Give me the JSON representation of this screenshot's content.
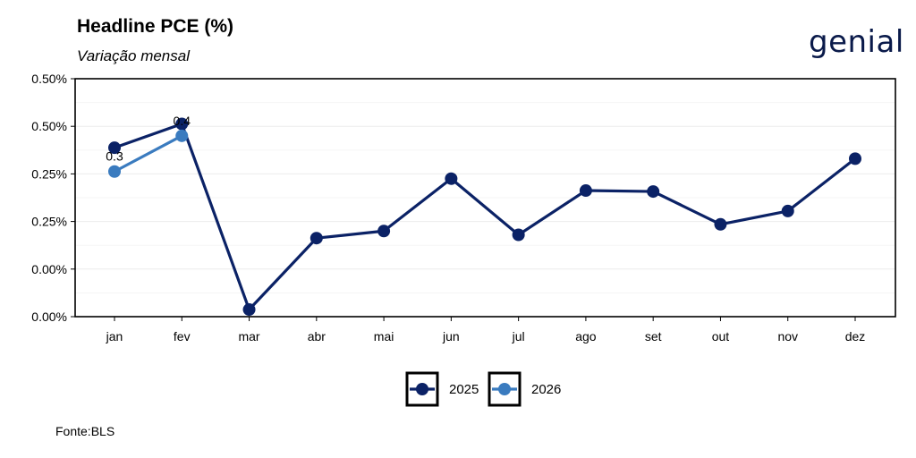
{
  "header": {
    "title": "Headline PCE (%)",
    "subtitle": "Variação mensal"
  },
  "logo": {
    "text": "genial"
  },
  "footer": {
    "source": "Fonte:BLS"
  },
  "chart_data": {
    "type": "line",
    "categories": [
      "jan",
      "fev",
      "mar",
      "abr",
      "mai",
      "jun",
      "jul",
      "ago",
      "set",
      "out",
      "nov",
      "dez"
    ],
    "y_tick_labels": [
      "0.00%",
      "0.00%",
      "0.25%",
      "0.25%",
      "0.50%",
      "0.50%"
    ],
    "ylim": [
      0.0,
      0.5
    ],
    "grid": true,
    "legend_position": "bottom",
    "series": [
      {
        "name": "2025",
        "color": "#0b2266",
        "values": [
          0.355,
          0.405,
          0.015,
          0.165,
          0.18,
          0.29,
          0.172,
          0.265,
          0.263,
          0.194,
          0.222,
          0.332
        ]
      },
      {
        "name": "2026",
        "color": "#3a7bbf",
        "values": [
          0.305,
          0.38,
          null,
          null,
          null,
          null,
          null,
          null,
          null,
          null,
          null,
          null
        ],
        "data_labels": [
          "0.3",
          "0.4"
        ]
      }
    ]
  }
}
